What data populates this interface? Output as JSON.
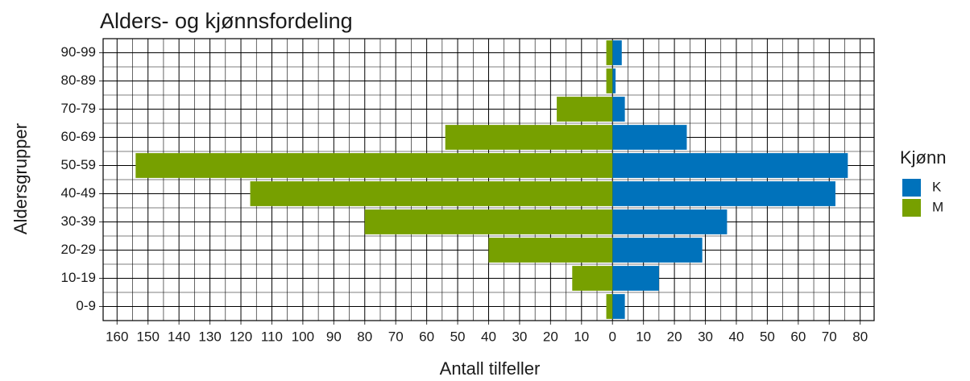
{
  "chart_data": {
    "type": "pyramid",
    "title": "Alders- og kjønnsfordeling",
    "x_label": "Antall tilfeller",
    "y_label": "Aldersgrupper",
    "legend_title": "Kjønn",
    "legend": "right",
    "grid": true,
    "categories": [
      "0-9",
      "10-19",
      "20-29",
      "30-39",
      "40-49",
      "50-59",
      "60-69",
      "70-79",
      "80-89",
      "90-99"
    ],
    "series": [
      {
        "name": "K",
        "color": "#0072bb",
        "values": [
          4,
          15,
          29,
          37,
          72,
          76,
          24,
          4,
          1,
          3
        ]
      },
      {
        "name": "M",
        "color": "#77a000",
        "values": [
          -2,
          -13,
          -40,
          -80,
          -117,
          -154,
          -54,
          -18,
          -2,
          -2
        ]
      }
    ],
    "xlim": [
      -164.5,
      84.5
    ],
    "xticks": [
      {
        "value": -160,
        "label": "160"
      },
      {
        "value": -150,
        "label": "150"
      },
      {
        "value": -140,
        "label": "140"
      },
      {
        "value": -130,
        "label": "130"
      },
      {
        "value": -120,
        "label": "120"
      },
      {
        "value": -110,
        "label": "110"
      },
      {
        "value": -100,
        "label": "100"
      },
      {
        "value": -90,
        "label": "90"
      },
      {
        "value": -80,
        "label": "80"
      },
      {
        "value": -70,
        "label": "70"
      },
      {
        "value": -60,
        "label": "60"
      },
      {
        "value": -50,
        "label": "50"
      },
      {
        "value": -40,
        "label": "40"
      },
      {
        "value": -30,
        "label": "30"
      },
      {
        "value": -20,
        "label": "20"
      },
      {
        "value": -10,
        "label": "10"
      },
      0,
      10,
      20,
      30,
      40,
      50,
      60,
      70,
      80
    ]
  }
}
